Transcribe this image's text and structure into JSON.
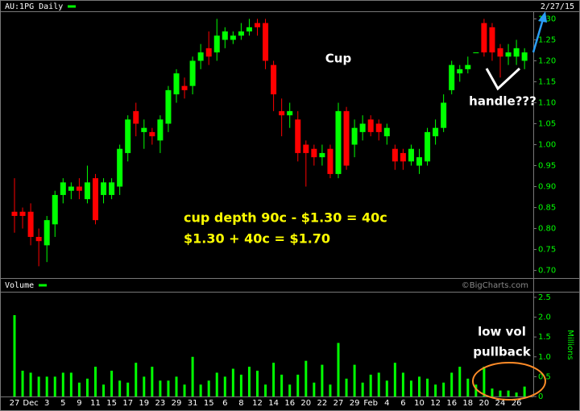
{
  "chart_data": [
    {
      "type": "candlestick",
      "title": "AU:1PG Daily",
      "date": "2/27/15",
      "up_color": "#00ff00",
      "down_color": "#ff0000",
      "open": [
        0.84,
        0.84,
        0.84,
        0.78,
        0.76,
        0.81,
        0.88,
        0.89,
        0.9,
        0.87,
        0.92,
        0.88,
        0.88,
        0.9,
        0.98,
        1.08,
        1.03,
        1.03,
        1.01,
        1.05,
        1.12,
        1.14,
        1.14,
        1.2,
        1.23,
        1.22,
        1.25,
        1.25,
        1.26,
        1.27,
        1.29,
        1.29,
        1.19,
        1.08,
        1.07,
        1.06,
        1.0,
        0.99,
        0.97,
        0.99,
        0.93,
        1.08,
        1.0,
        1.03,
        1.06,
        1.05,
        1.02,
        0.99,
        0.98,
        0.96,
        0.95,
        0.96,
        1.02,
        1.04,
        1.13,
        1.17,
        1.18,
        1.22,
        1.29,
        1.28,
        1.23,
        1.21,
        1.21,
        1.2
      ],
      "high": [
        0.92,
        0.85,
        0.86,
        0.8,
        0.83,
        0.89,
        0.92,
        0.91,
        0.92,
        0.95,
        0.93,
        0.92,
        0.92,
        1.0,
        1.07,
        1.1,
        1.06,
        1.04,
        1.07,
        1.14,
        1.18,
        1.16,
        1.21,
        1.24,
        1.27,
        1.3,
        1.28,
        1.27,
        1.29,
        1.3,
        1.3,
        1.3,
        1.2,
        1.11,
        1.1,
        1.08,
        1.01,
        1.0,
        1.0,
        1.0,
        1.1,
        1.09,
        1.06,
        1.07,
        1.07,
        1.06,
        1.05,
        1.0,
        0.99,
        1.0,
        0.99,
        1.04,
        1.06,
        1.12,
        1.2,
        1.19,
        1.21,
        1.22,
        1.3,
        1.29,
        1.24,
        1.24,
        1.25,
        1.23
      ],
      "low": [
        0.79,
        0.8,
        0.76,
        0.71,
        0.72,
        0.78,
        0.86,
        0.87,
        0.87,
        0.86,
        0.81,
        0.86,
        0.87,
        0.88,
        0.96,
        1.02,
        0.99,
        1.0,
        0.98,
        1.03,
        1.1,
        1.11,
        1.12,
        1.18,
        1.19,
        1.2,
        1.23,
        1.24,
        1.25,
        1.26,
        1.26,
        1.18,
        1.08,
        1.02,
        1.04,
        0.96,
        0.9,
        0.95,
        0.95,
        0.92,
        0.92,
        0.94,
        0.97,
        1.01,
        1.02,
        1.01,
        1.0,
        0.94,
        0.94,
        0.95,
        0.93,
        0.95,
        1.0,
        1.03,
        1.12,
        1.15,
        1.17,
        1.22,
        1.21,
        1.2,
        1.16,
        1.19,
        1.19,
        1.18
      ],
      "close": [
        0.83,
        0.83,
        0.78,
        0.77,
        0.82,
        0.88,
        0.91,
        0.9,
        0.89,
        0.91,
        0.82,
        0.91,
        0.91,
        0.99,
        1.06,
        1.05,
        1.04,
        1.02,
        1.06,
        1.13,
        1.17,
        1.13,
        1.2,
        1.22,
        1.21,
        1.26,
        1.27,
        1.26,
        1.27,
        1.28,
        1.28,
        1.2,
        1.12,
        1.07,
        1.08,
        0.98,
        0.98,
        0.97,
        0.98,
        0.93,
        1.08,
        0.95,
        1.04,
        1.05,
        1.03,
        1.03,
        1.04,
        0.96,
        0.96,
        0.99,
        0.97,
        1.03,
        1.04,
        1.1,
        1.19,
        1.18,
        1.19,
        1.22,
        1.22,
        1.22,
        1.21,
        1.22,
        1.23,
        1.22
      ],
      "ylim": [
        0.68,
        1.32
      ],
      "yticks": [
        {
          "value": 0.7,
          "label": "0.70"
        },
        {
          "value": 0.75,
          "label": "0.75"
        },
        {
          "value": 0.8,
          "label": "0.80"
        },
        {
          "value": 0.85,
          "label": "0.85"
        },
        {
          "value": 0.9,
          "label": "0.90"
        },
        {
          "value": 0.95,
          "label": "0.95"
        },
        {
          "value": 1.0,
          "label": "1.00"
        },
        {
          "value": 1.05,
          "label": "1.05"
        },
        {
          "value": 1.1,
          "label": "1.10"
        },
        {
          "value": 1.15,
          "label": "1.15"
        },
        {
          "value": 1.2,
          "label": "1.20"
        },
        {
          "value": 1.25,
          "label": "1.25"
        },
        {
          "value": 1.3,
          "label": "1.30"
        }
      ],
      "annotations": [
        "Cup",
        "handle???",
        "cup depth 90c - $1.30 = 40c",
        "$1.30 + 40c = $1.70"
      ]
    },
    {
      "type": "bar",
      "title": "Volume",
      "ylabel": "Millions",
      "watermark": "©BigCharts.com",
      "color": "#00ff00",
      "categories": [
        "27",
        null,
        "Dec",
        null,
        "3",
        null,
        "5",
        null,
        "9",
        null,
        "11",
        null,
        "15",
        null,
        "17",
        null,
        "19",
        null,
        "23",
        null,
        "29",
        null,
        "31",
        null,
        "15",
        null,
        "6",
        null,
        "8",
        null,
        "12",
        null,
        "14",
        null,
        "16",
        null,
        "20",
        null,
        "22",
        null,
        "27",
        null,
        "29",
        null,
        "Feb",
        null,
        "4",
        null,
        "6",
        null,
        "10",
        null,
        "12",
        null,
        "16",
        null,
        "18",
        null,
        "20",
        null,
        "24",
        null,
        "26",
        null
      ],
      "values": [
        2.05,
        0.65,
        0.6,
        0.5,
        0.5,
        0.5,
        0.6,
        0.6,
        0.35,
        0.45,
        0.75,
        0.3,
        0.65,
        0.4,
        0.35,
        0.85,
        0.5,
        0.75,
        0.4,
        0.4,
        0.5,
        0.3,
        1.0,
        0.3,
        0.4,
        0.6,
        0.5,
        0.7,
        0.55,
        0.75,
        0.65,
        0.3,
        0.85,
        0.55,
        0.3,
        0.55,
        0.9,
        0.35,
        0.8,
        0.3,
        1.35,
        0.45,
        0.8,
        0.35,
        0.55,
        0.6,
        0.4,
        0.85,
        0.6,
        0.4,
        0.5,
        0.45,
        0.3,
        0.35,
        0.6,
        0.75,
        0.45,
        0.3,
        0.75,
        0.2,
        0.15,
        0.15,
        0.1,
        0.25
      ],
      "ylim": [
        0,
        2.6
      ],
      "yticks": [
        0,
        0.5,
        {
          "value": 1,
          "label": "1.0"
        },
        {
          "value": 1.5,
          "label": "1.5"
        },
        {
          "value": 2,
          "label": "2.0"
        },
        2.5
      ],
      "annotations": [
        "low vol",
        "pullback"
      ]
    }
  ]
}
